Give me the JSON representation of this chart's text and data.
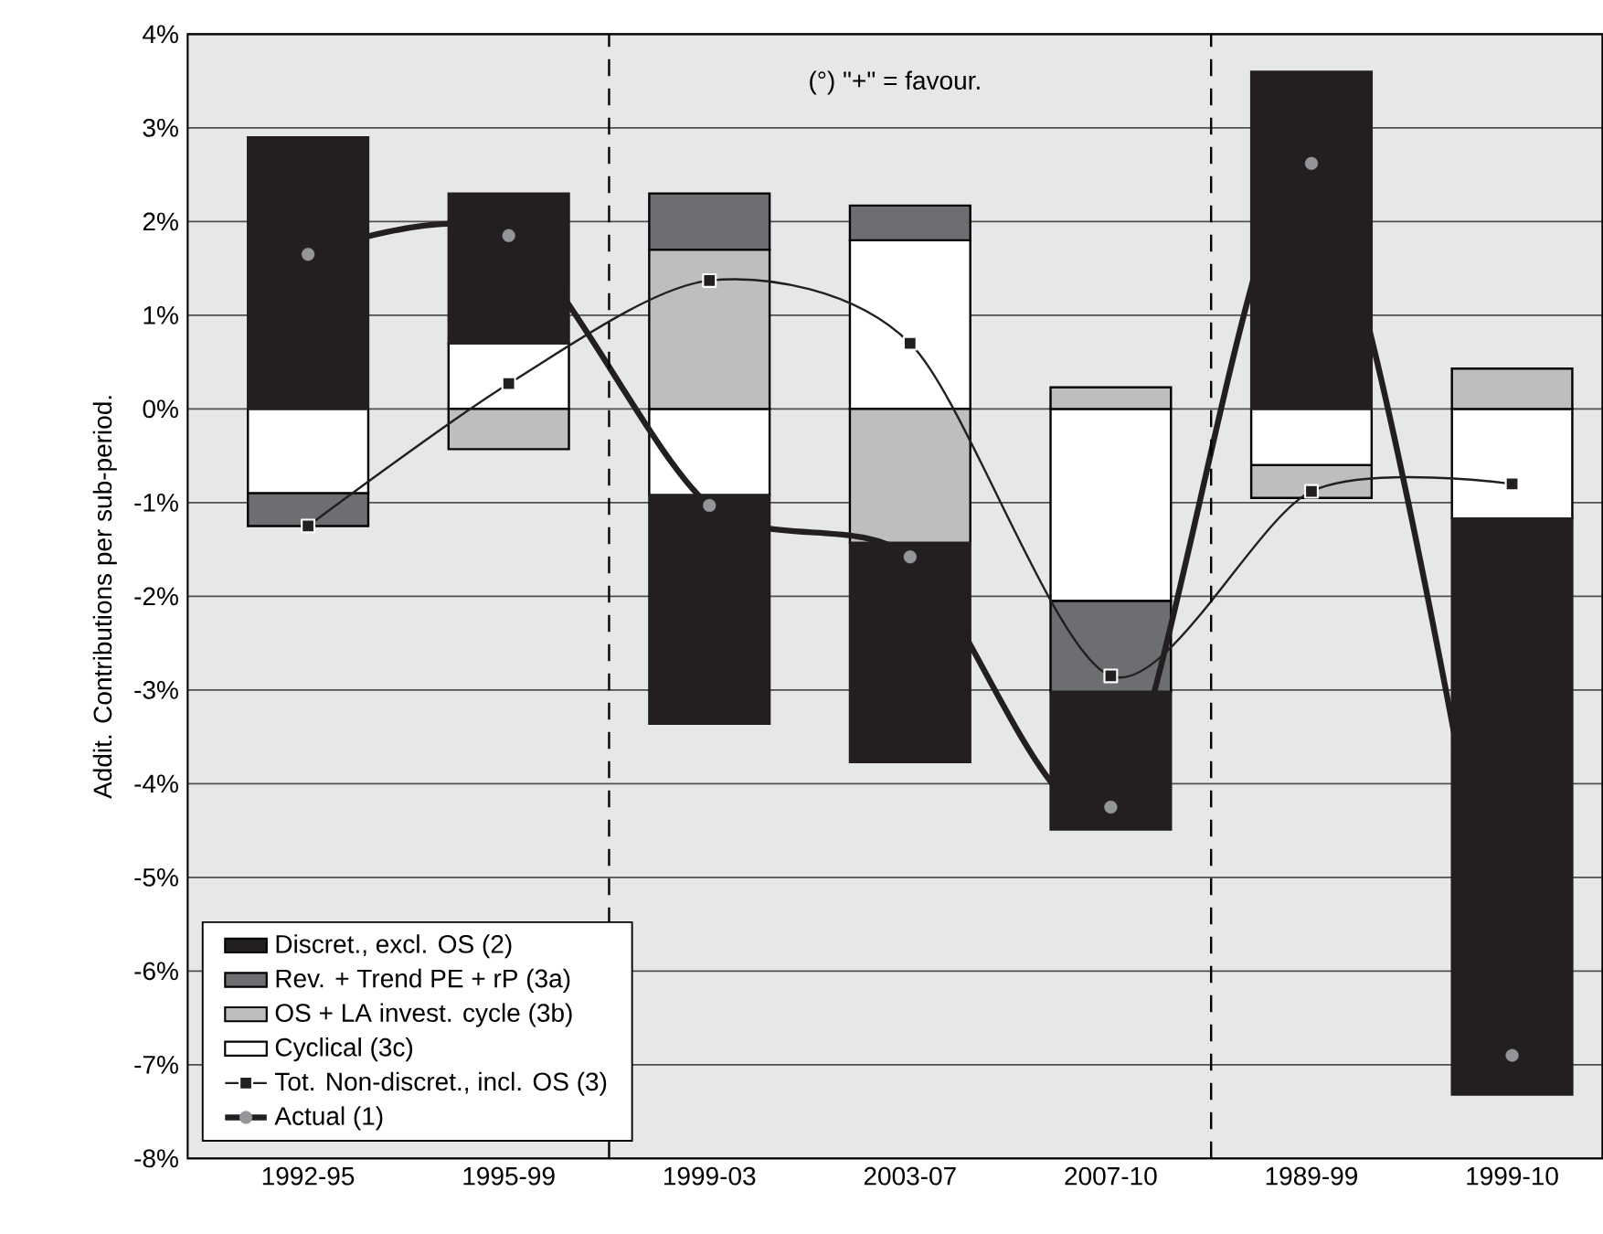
{
  "chart_data": {
    "type": "bar",
    "stacked": true,
    "ylabel": "Addit. Contributions per sub-period.",
    "annotations": [
      "(°) \"+\" = favour."
    ],
    "categories": [
      "1992-95",
      "1995-99",
      "1999-03",
      "2003-07",
      "2007-10",
      "1989-99",
      "1999-10"
    ],
    "series": [
      {
        "name": "Cyclical (3c)",
        "color": "#ffffff",
        "values": [
          -0.9,
          0.7,
          -0.92,
          1.8,
          -2.05,
          -0.6,
          -1.17
        ]
      },
      {
        "name": "OS + LA invest. cycle  (3b)",
        "color": "#bcbec0",
        "values": [
          0,
          -0.43,
          1.7,
          -1.43,
          0.23,
          -0.35,
          0.43
        ]
      },
      {
        "name": "Rev. + Trend PE + rP (3a)",
        "color": "#6d6e71",
        "values": [
          -0.35,
          0,
          0.6,
          0.37,
          -0.97,
          0,
          0
        ]
      },
      {
        "name": "Discret., excl. OS (2)",
        "color": "#231f20",
        "values": [
          2.9,
          1.6,
          -2.44,
          -2.34,
          -1.47,
          3.6,
          -6.15
        ]
      },
      {
        "name": "Tot. Non-discret., incl. OS (3)",
        "type": "line",
        "color": "#231f20",
        "marker": "square",
        "values": [
          -1.25,
          0.27,
          1.37,
          0.7,
          -2.85,
          -0.88,
          -0.8
        ]
      },
      {
        "name": "Actual (1)",
        "type": "line",
        "color": "#231f20",
        "marker": "circle",
        "values": [
          1.65,
          1.85,
          -1.03,
          -1.58,
          -4.25,
          2.62,
          -6.9
        ]
      }
    ],
    "ylim": [
      -8,
      4
    ],
    "yticks": [
      {
        "value": -8,
        "label": "-8%"
      },
      {
        "value": -7,
        "label": "-7%"
      },
      {
        "value": -6,
        "label": "-6%"
      },
      {
        "value": -5,
        "label": "-5%"
      },
      {
        "value": -4,
        "label": "-4%"
      },
      {
        "value": -3,
        "label": "-3%"
      },
      {
        "value": -2,
        "label": "-2%"
      },
      {
        "value": -1,
        "label": "-1%"
      },
      {
        "value": 0,
        "label": "0%"
      },
      {
        "value": 1,
        "label": "1%"
      },
      {
        "value": 2,
        "label": "2%"
      },
      {
        "value": 3,
        "label": "3%"
      },
      {
        "value": 4,
        "label": "4%"
      }
    ],
    "grid": "y",
    "legend": "bottom left"
  }
}
